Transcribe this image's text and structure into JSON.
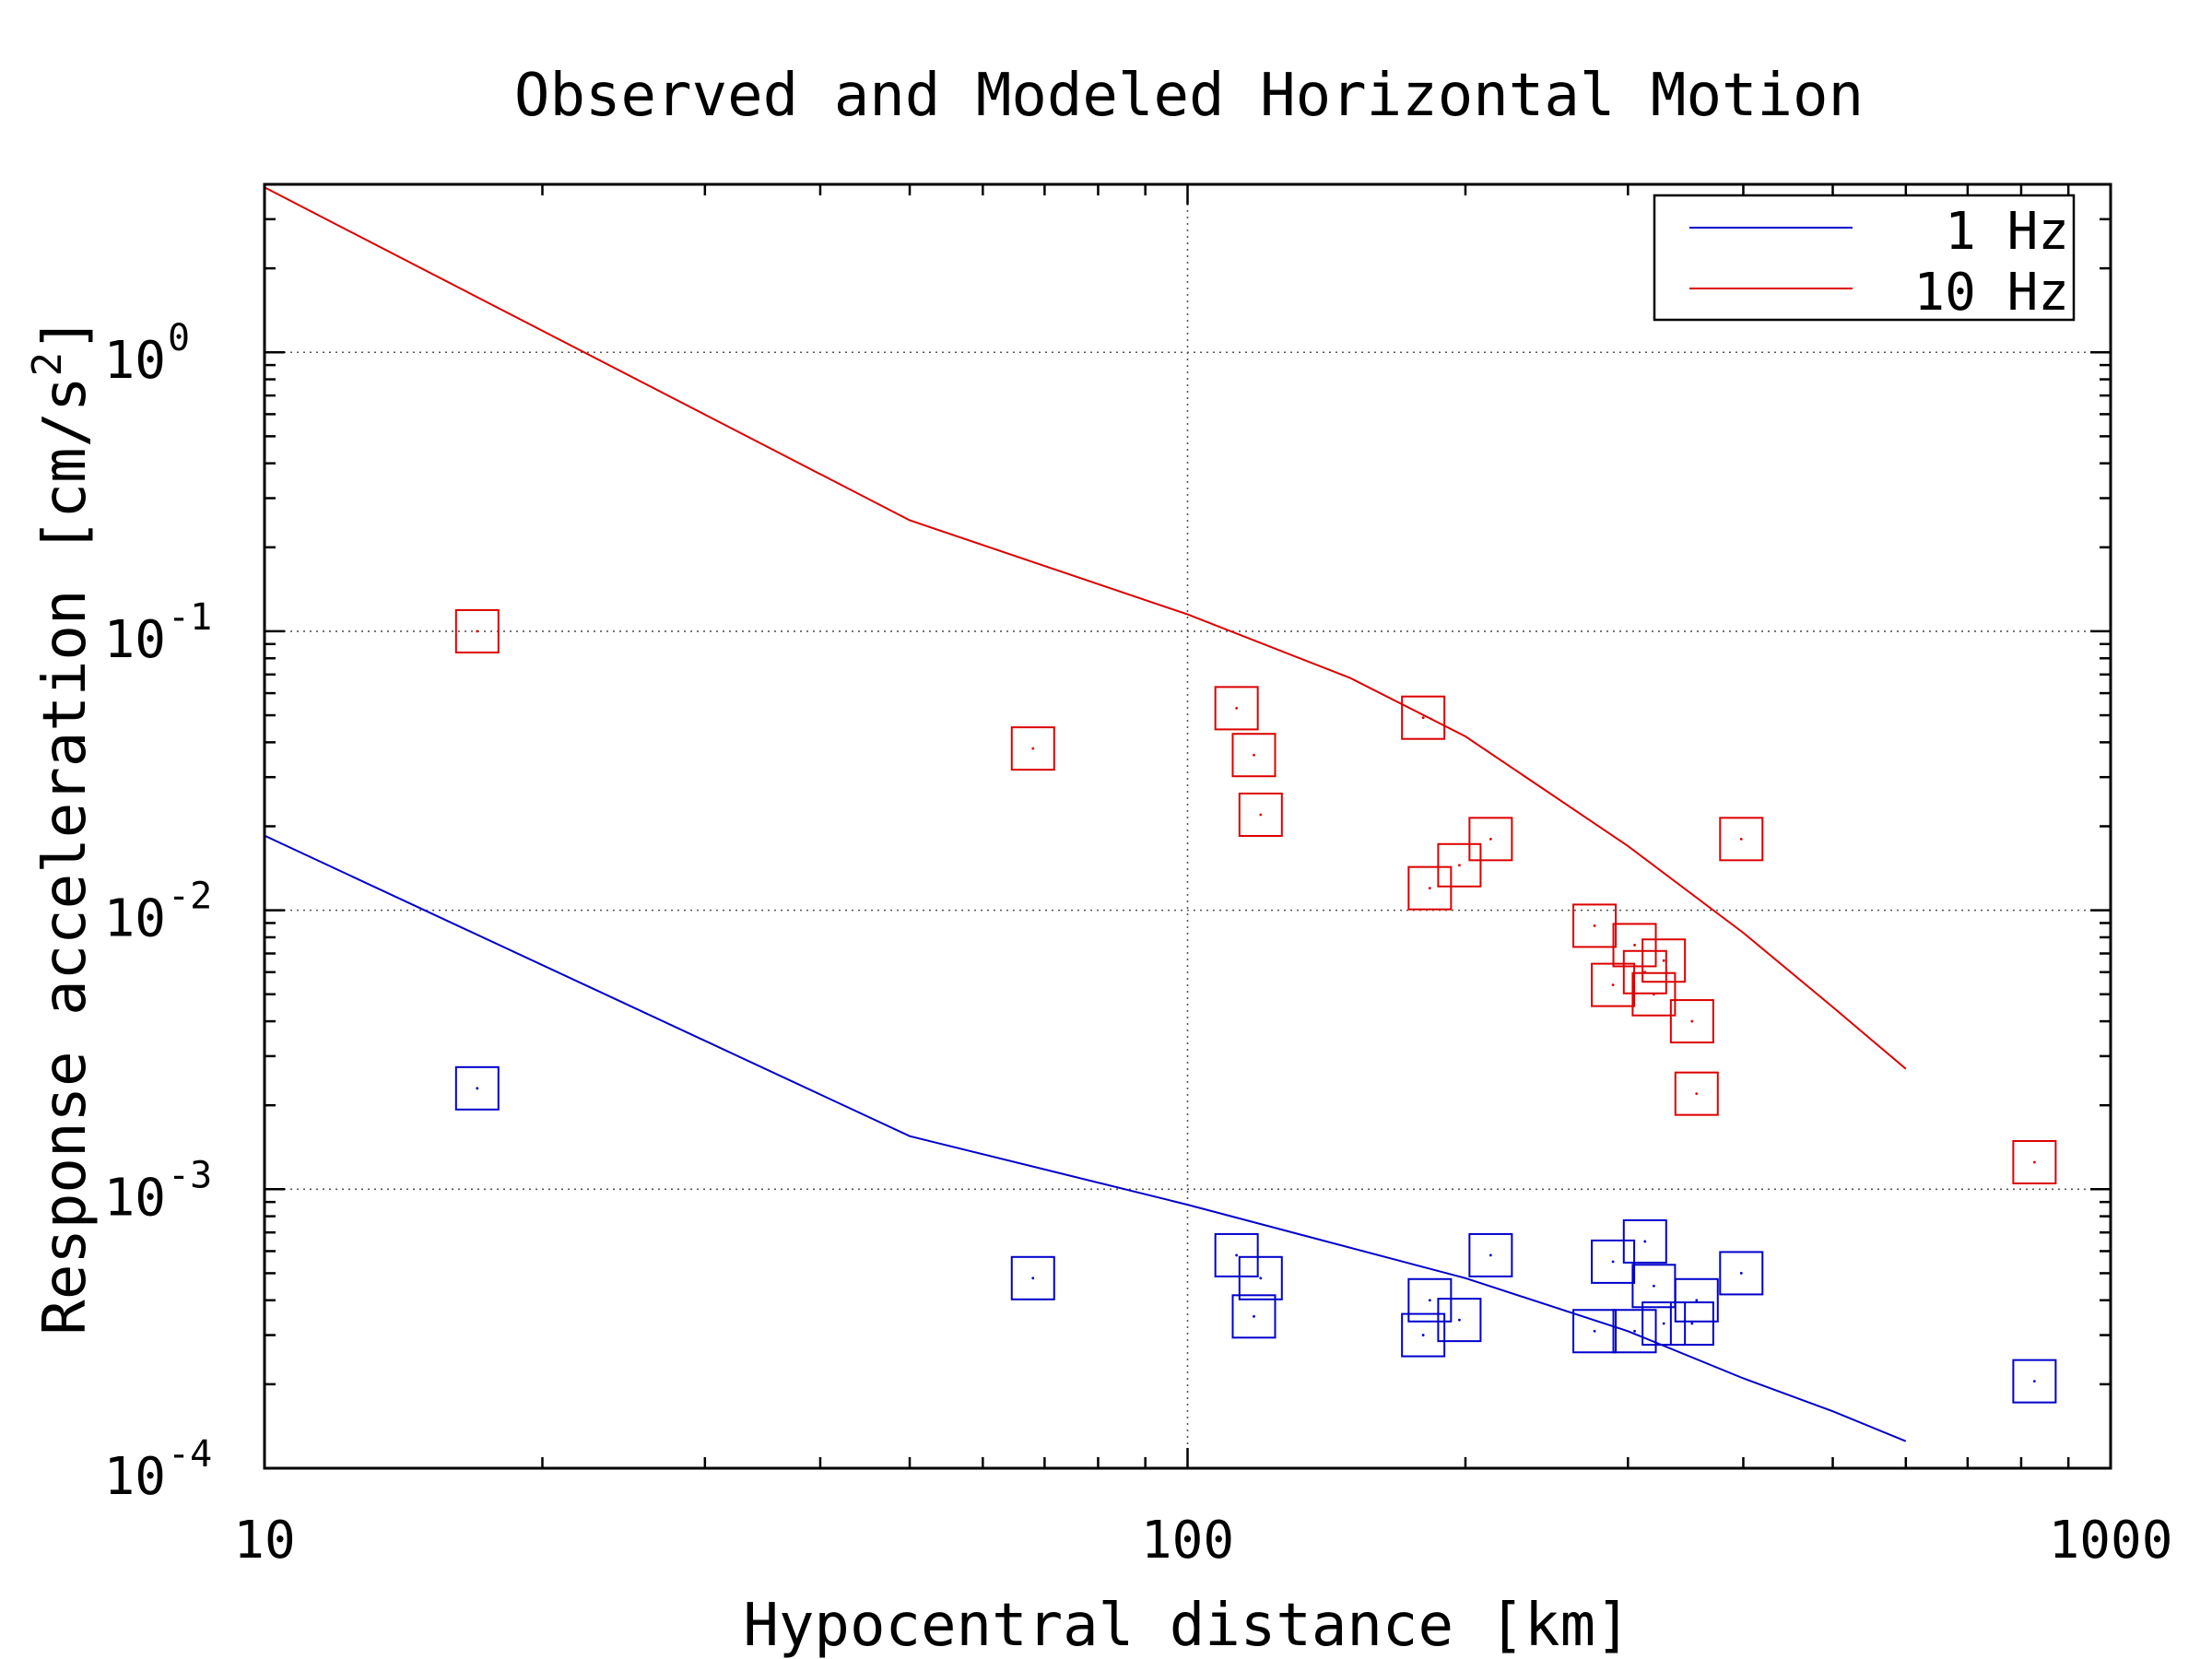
{
  "chart_data": {
    "type": "scatter",
    "title": "Observed and Modeled Horizontal Motion",
    "xlabel": "Hypocentral distance [km]",
    "ylabel_main": "Response acceleration [cm/s",
    "ylabel_sup": "2",
    "ylabel_end": "]",
    "x_scale": "log",
    "y_scale": "log",
    "xlim": [
      10,
      1000
    ],
    "ylim": [
      0.0001,
      4
    ],
    "x_ticks": [
      {
        "value": 10,
        "label": "10"
      },
      {
        "value": 100,
        "label": "100"
      },
      {
        "value": 1000,
        "label": "1000"
      }
    ],
    "y_ticks": [
      {
        "value": 0.0001,
        "base": "10",
        "exp": "-4"
      },
      {
        "value": 0.001,
        "base": "10",
        "exp": "-3"
      },
      {
        "value": 0.01,
        "base": "10",
        "exp": "-2"
      },
      {
        "value": 0.1,
        "base": "10",
        "exp": "-1"
      },
      {
        "value": 1,
        "base": "10",
        "exp": "0"
      }
    ],
    "grid": true,
    "legend_position": "top-right",
    "colors": {
      "1 Hz": "#0000cc",
      "10 Hz": "#dd0000"
    },
    "series": [
      {
        "name": "1 Hz",
        "kind": "model-line",
        "x": [
          10,
          50,
          100,
          200,
          300,
          400,
          500,
          600
        ],
        "y": [
          0.0185,
          0.00155,
          0.00088,
          0.00048,
          0.00031,
          0.00021,
          0.00016,
          0.000125
        ]
      },
      {
        "name": "10 Hz",
        "kind": "model-line",
        "x": [
          10,
          50,
          100,
          150,
          200,
          300,
          400,
          500,
          600
        ],
        "y": [
          3.9,
          0.25,
          0.115,
          0.068,
          0.042,
          0.017,
          0.0083,
          0.0045,
          0.0027
        ]
      },
      {
        "name": "10 Hz",
        "kind": "observed",
        "x": [
          17,
          68,
          113,
          118,
          120,
          180,
          183,
          197,
          213,
          276,
          289,
          305,
          313,
          320,
          328,
          352,
          356,
          398,
          827
        ],
        "y": [
          0.1,
          0.038,
          0.053,
          0.036,
          0.022,
          0.049,
          0.012,
          0.0145,
          0.018,
          0.0088,
          0.0054,
          0.0075,
          0.006,
          0.005,
          0.0066,
          0.004,
          0.0022,
          0.018,
          0.00125
        ]
      },
      {
        "name": "1 Hz",
        "kind": "observed",
        "x": [
          17,
          68,
          113,
          118,
          120,
          180,
          183,
          197,
          213,
          276,
          289,
          305,
          313,
          320,
          328,
          352,
          356,
          398,
          827
        ],
        "y": [
          0.0023,
          0.00048,
          0.00058,
          0.00035,
          0.00048,
          0.0003,
          0.0004,
          0.00034,
          0.00058,
          0.00031,
          0.00055,
          0.00031,
          0.00065,
          0.00045,
          0.00033,
          0.00033,
          0.0004,
          0.0005,
          0.000205
        ]
      }
    ]
  }
}
